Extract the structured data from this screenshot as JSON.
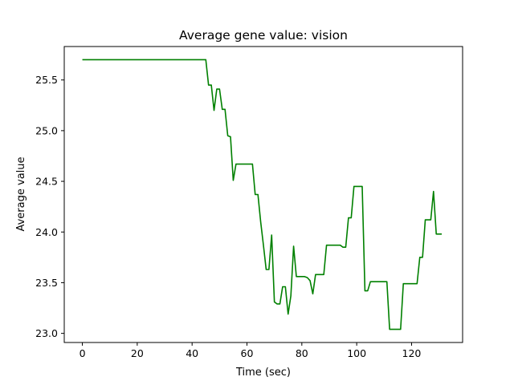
{
  "chart_data": {
    "type": "line",
    "title": "Average gene value: vision",
    "xlabel": "Time (sec)",
    "ylabel": "Average value",
    "xlim": [
      -6.6,
      138.6
    ],
    "ylim": [
      22.91,
      25.83
    ],
    "xticks": [
      0,
      20,
      40,
      60,
      80,
      100,
      120
    ],
    "yticks": [
      23.0,
      23.5,
      24.0,
      24.5,
      25.0,
      25.5
    ],
    "xtick_labels": [
      "0",
      "20",
      "40",
      "60",
      "80",
      "100",
      "120"
    ],
    "ytick_labels": [
      "23.0",
      "23.5",
      "24.0",
      "24.5",
      "25.0",
      "25.5"
    ],
    "grid": false,
    "series": [
      {
        "color": "#008000",
        "x": [
          0,
          45,
          46,
          47,
          48,
          49,
          50,
          51,
          52,
          53,
          54,
          55,
          56,
          57,
          58,
          59,
          60,
          61,
          62,
          63,
          64,
          65,
          66,
          67,
          68,
          69,
          70,
          71,
          72,
          73,
          74,
          75,
          76,
          77,
          78,
          79,
          80,
          81,
          82,
          83,
          84,
          85,
          86,
          87,
          88,
          89,
          90,
          91,
          92,
          93,
          94,
          95,
          96,
          97,
          98,
          99,
          100,
          101,
          102,
          103,
          104,
          105,
          106,
          107,
          108,
          109,
          110,
          111,
          112,
          113,
          114,
          115,
          116,
          117,
          118,
          119,
          120,
          121,
          122,
          123,
          124,
          125,
          126,
          127,
          128,
          129,
          130,
          131
        ],
        "y": [
          25.7,
          25.7,
          25.45,
          25.45,
          25.2,
          25.41,
          25.41,
          25.21,
          25.21,
          24.95,
          24.94,
          24.51,
          24.67,
          24.67,
          24.67,
          24.67,
          24.67,
          24.67,
          24.67,
          24.37,
          24.37,
          24.1,
          23.87,
          23.63,
          23.63,
          23.97,
          23.31,
          23.29,
          23.29,
          23.46,
          23.46,
          23.19,
          23.37,
          23.86,
          23.56,
          23.56,
          23.56,
          23.56,
          23.55,
          23.52,
          23.39,
          23.58,
          23.58,
          23.58,
          23.58,
          23.87,
          23.87,
          23.87,
          23.87,
          23.87,
          23.87,
          23.85,
          23.85,
          24.14,
          24.14,
          24.45,
          24.45,
          24.45,
          24.45,
          23.42,
          23.42,
          23.51,
          23.51,
          23.51,
          23.51,
          23.51,
          23.51,
          23.51,
          23.04,
          23.04,
          23.04,
          23.04,
          23.04,
          23.49,
          23.49,
          23.49,
          23.49,
          23.49,
          23.49,
          23.75,
          23.75,
          24.12,
          24.12,
          24.12,
          24.4,
          23.98,
          23.98,
          23.98
        ]
      }
    ]
  }
}
